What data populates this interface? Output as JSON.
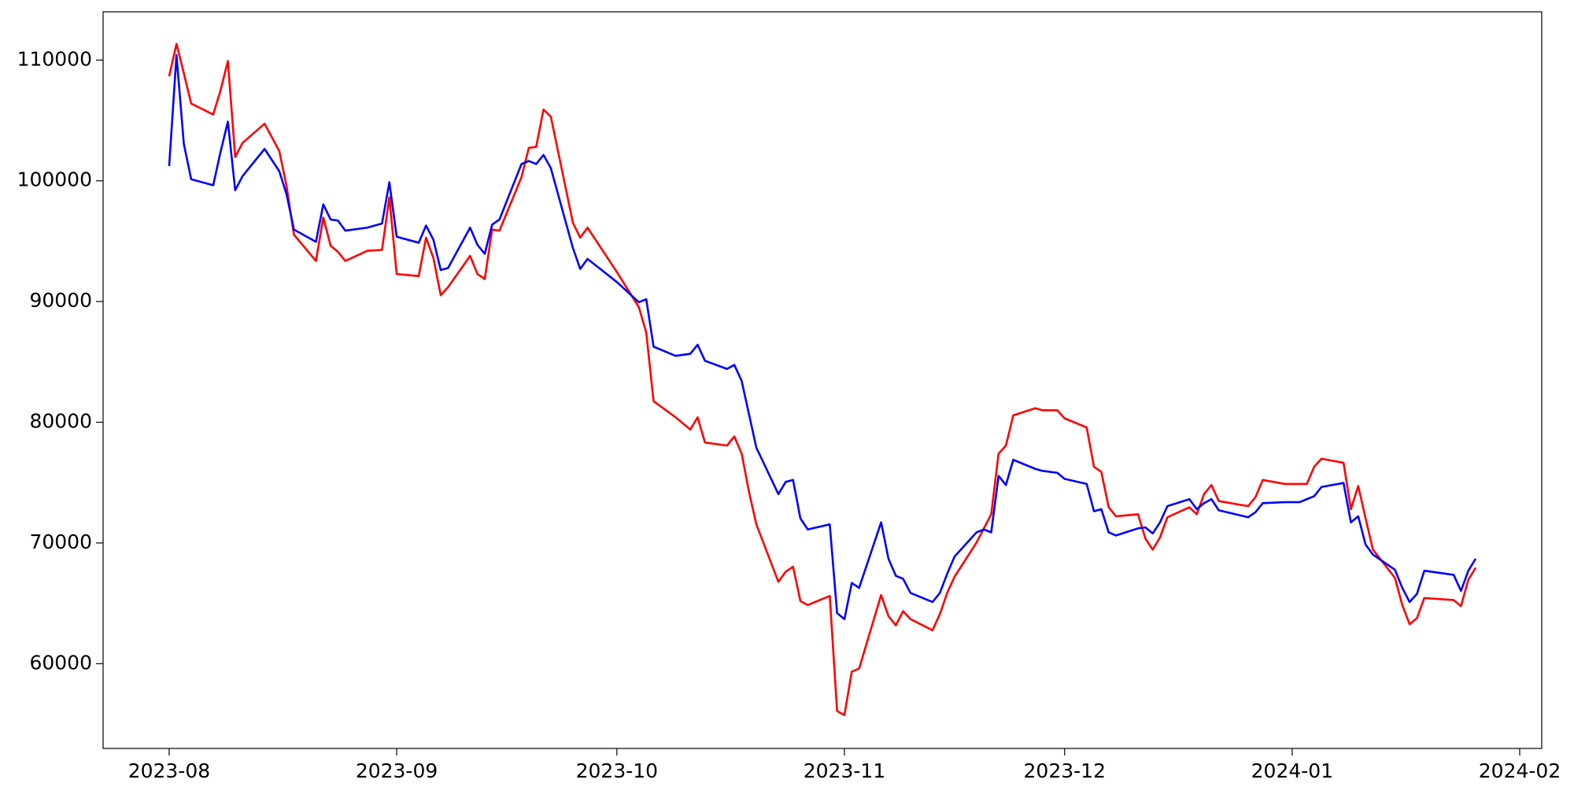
{
  "chart_data": {
    "type": "line",
    "x": [
      "2023-08-01",
      "2023-08-02",
      "2023-08-03",
      "2023-08-04",
      "2023-08-07",
      "2023-08-08",
      "2023-08-09",
      "2023-08-10",
      "2023-08-11",
      "2023-08-14",
      "2023-08-16",
      "2023-08-17",
      "2023-08-18",
      "2023-08-21",
      "2023-08-22",
      "2023-08-23",
      "2023-08-24",
      "2023-08-25",
      "2023-08-28",
      "2023-08-30",
      "2023-08-31",
      "2023-09-01",
      "2023-09-04",
      "2023-09-05",
      "2023-09-06",
      "2023-09-07",
      "2023-09-08",
      "2023-09-11",
      "2023-09-12",
      "2023-09-13",
      "2023-09-14",
      "2023-09-15",
      "2023-09-18",
      "2023-09-19",
      "2023-09-20",
      "2023-09-21",
      "2023-09-22",
      "2023-09-25",
      "2023-09-26",
      "2023-09-27",
      "2023-10-01",
      "2023-10-04",
      "2023-10-05",
      "2023-10-06",
      "2023-10-09",
      "2023-10-11",
      "2023-10-12",
      "2023-10-13",
      "2023-10-16",
      "2023-10-17",
      "2023-10-18",
      "2023-10-19",
      "2023-10-20",
      "2023-10-23",
      "2023-10-24",
      "2023-10-25",
      "2023-10-26",
      "2023-10-27",
      "2023-10-30",
      "2023-10-31",
      "2023-11-01",
      "2023-11-02",
      "2023-11-03",
      "2023-11-06",
      "2023-11-07",
      "2023-11-08",
      "2023-11-09",
      "2023-11-10",
      "2023-11-13",
      "2023-11-14",
      "2023-11-15",
      "2023-11-16",
      "2023-11-19",
      "2023-11-20",
      "2023-11-21",
      "2023-11-22",
      "2023-11-23",
      "2023-11-24",
      "2023-11-27",
      "2023-11-28",
      "2023-11-29",
      "2023-11-30",
      "2023-12-01",
      "2023-12-04",
      "2023-12-05",
      "2023-12-06",
      "2023-12-07",
      "2023-12-08",
      "2023-12-11",
      "2023-12-12",
      "2023-12-13",
      "2023-12-14",
      "2023-12-15",
      "2023-12-18",
      "2023-12-19",
      "2023-12-20",
      "2023-12-21",
      "2023-12-22",
      "2023-12-26",
      "2023-12-27",
      "2023-12-28",
      "2023-12-31",
      "2024-01-02",
      "2024-01-03",
      "2024-01-04",
      "2024-01-05",
      "2024-01-08",
      "2024-01-09",
      "2024-01-10",
      "2024-01-11",
      "2024-01-12",
      "2024-01-15",
      "2024-01-16",
      "2024-01-17",
      "2024-01-18",
      "2024-01-19",
      "2024-01-23",
      "2024-01-24",
      "2024-01-25",
      "2024-01-26"
    ],
    "series": [
      {
        "color": "#ff0000",
        "values": [
          108660,
          111340,
          108910,
          106400,
          105490,
          107490,
          109920,
          101970,
          103140,
          104730,
          102480,
          99550,
          95540,
          93360,
          96960,
          94620,
          94120,
          93360,
          94200,
          94280,
          98630,
          92280,
          92110,
          95290,
          93610,
          90520,
          91190,
          93780,
          92280,
          91860,
          95960,
          95870,
          100300,
          102730,
          102810,
          105900,
          105320,
          96540,
          95290,
          96120,
          92440,
          89520,
          87430,
          81740,
          80410,
          79400,
          80410,
          78320,
          78070,
          78820,
          77400,
          74220,
          71540,
          66780,
          67620,
          68030,
          65190,
          64860,
          65610,
          56080,
          55740,
          59340,
          59590,
          65690,
          63940,
          63180,
          64350,
          63690,
          62770,
          64100,
          65860,
          67200,
          70040,
          71210,
          72380,
          77400,
          78070,
          80570,
          81160,
          80990,
          80990,
          80990,
          80320,
          79570,
          76310,
          75890,
          72960,
          72210,
          72380,
          70370,
          69450,
          70460,
          72130,
          72960,
          72380,
          74050,
          74800,
          73470,
          73050,
          73800,
          75220,
          74890,
          74890,
          74890,
          76310,
          76980,
          76640,
          72800,
          74720,
          72040,
          69450,
          67110,
          64860,
          63270,
          63770,
          65440,
          65270,
          64770,
          66950,
          67950
        ]
      },
      {
        "color": "#0000ff",
        "values": [
          101220,
          110420,
          103060,
          100130,
          99630,
          102390,
          104900,
          99220,
          100390,
          102640,
          100800,
          98880,
          95960,
          94950,
          98050,
          96790,
          96710,
          95870,
          96120,
          96460,
          99880,
          95370,
          94870,
          96290,
          95120,
          92610,
          92780,
          96120,
          94700,
          93950,
          96370,
          96790,
          101390,
          101640,
          101390,
          102140,
          101050,
          94450,
          92700,
          93530,
          91610,
          89940,
          90190,
          86260,
          85500,
          85670,
          86420,
          85090,
          84420,
          84750,
          83420,
          80660,
          77900,
          74050,
          75060,
          75220,
          72040,
          71120,
          71540,
          64190,
          63690,
          66690,
          66280,
          71710,
          68700,
          67280,
          67030,
          65860,
          65110,
          65860,
          67450,
          68870,
          70880,
          71120,
          70880,
          75560,
          74800,
          76890,
          76140,
          75970,
          75890,
          75810,
          75310,
          74890,
          72630,
          72800,
          70880,
          70620,
          71210,
          71290,
          70790,
          71710,
          73050,
          73630,
          72800,
          73300,
          73630,
          72710,
          72130,
          72550,
          73300,
          73380,
          73380,
          73630,
          73880,
          74640,
          74970,
          71710,
          72210,
          69870,
          69040,
          67780,
          66280,
          65110,
          65780,
          67700,
          67360,
          66030,
          67700,
          68700
        ]
      }
    ],
    "xlim": [
      "2023-07-23",
      "2024-02-04"
    ],
    "xticks": [
      {
        "value": "2023-08-01",
        "label": "2023-08"
      },
      {
        "value": "2023-09-01",
        "label": "2023-09"
      },
      {
        "value": "2023-10-01",
        "label": "2023-10"
      },
      {
        "value": "2023-11-01",
        "label": "2023-11"
      },
      {
        "value": "2023-12-01",
        "label": "2023-12"
      },
      {
        "value": "2024-01-01",
        "label": "2024-01"
      },
      {
        "value": "2024-02-01",
        "label": "2024-02"
      }
    ],
    "ylim": [
      52980,
      114000
    ],
    "yticks": [
      60000,
      70000,
      80000,
      90000,
      100000,
      110000
    ],
    "grid": false
  }
}
